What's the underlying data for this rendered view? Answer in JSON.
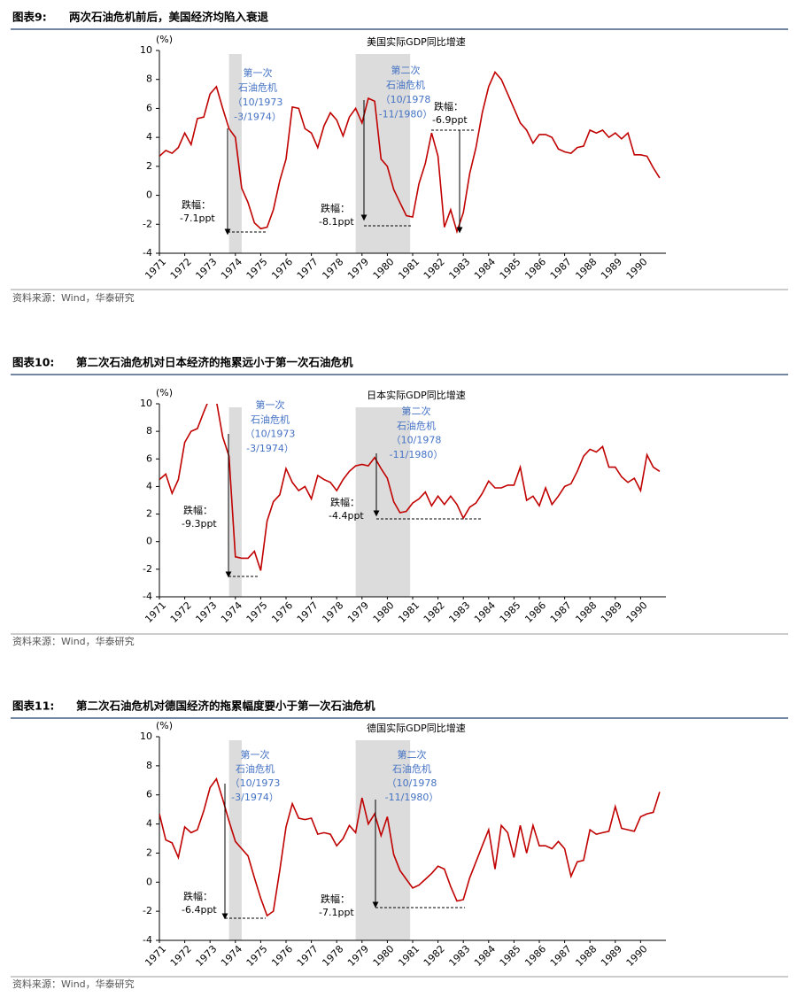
{
  "figures": [
    {
      "label": "图表9:",
      "title": "两次石油危机前后，美国经济均陷入衰退",
      "source": "资料来源：Wind，华泰研究"
    },
    {
      "label": "图表10:",
      "title": "第二次石油危机对日本经济的拖累远小于第一次石油危机",
      "source": "资料来源：Wind，华泰研究"
    },
    {
      "label": "图表11:",
      "title": "第二次石油危机对德国经济的拖累幅度要小于第一次石油危机",
      "source": "资料来源：Wind，华泰研究"
    }
  ],
  "chart_data": [
    {
      "type": "line",
      "title": "美国实际GDP同比增速",
      "y_unit": "(%)",
      "xlim": [
        1971,
        1991
      ],
      "xticks": [
        1971,
        1972,
        1973,
        1974,
        1975,
        1976,
        1977,
        1978,
        1979,
        1980,
        1981,
        1982,
        1983,
        1984,
        1985,
        1986,
        1987,
        1988,
        1989,
        1990
      ],
      "ylim": [
        -4,
        10
      ],
      "yticks": [
        -4,
        -2,
        0,
        2,
        4,
        6,
        8,
        10
      ],
      "shaded_periods": [
        [
          1973.75,
          1974.25
        ],
        [
          1978.75,
          1980.9
        ]
      ],
      "annotations": [
        {
          "lines": [
            "第一次",
            "石油危机",
            "（10/1973",
            "-3/1974）"
          ]
        },
        {
          "lines": [
            "第二次",
            "石油危机",
            "（10/1978",
            "-11/1980）"
          ]
        }
      ],
      "drops": [
        {
          "label": "跌幅：",
          "text": "-7.1ppt"
        },
        {
          "label": "跌幅：",
          "text": "-8.1ppt"
        },
        {
          "label": "跌幅：",
          "text": "-6.9ppt"
        }
      ],
      "x": [
        1971,
        1971.25,
        1971.5,
        1971.75,
        1972,
        1972.25,
        1972.5,
        1972.75,
        1973,
        1973.25,
        1973.5,
        1973.75,
        1974,
        1974.25,
        1974.5,
        1974.75,
        1975,
        1975.25,
        1975.5,
        1975.75,
        1976,
        1976.25,
        1976.5,
        1976.75,
        1977,
        1977.25,
        1977.5,
        1977.75,
        1978,
        1978.25,
        1978.5,
        1978.75,
        1979,
        1979.25,
        1979.5,
        1979.75,
        1980,
        1980.25,
        1980.5,
        1980.75,
        1981,
        1981.25,
        1981.5,
        1981.75,
        1982,
        1982.25,
        1982.5,
        1982.75,
        1983,
        1983.25,
        1983.5,
        1983.75,
        1984,
        1984.25,
        1984.5,
        1984.75,
        1985,
        1985.25,
        1985.5,
        1985.75,
        1986,
        1986.25,
        1986.5,
        1986.75,
        1987,
        1987.25,
        1987.5,
        1987.75,
        1988,
        1988.25,
        1988.5,
        1988.75,
        1989,
        1989.25,
        1989.5,
        1989.75,
        1990,
        1990.25,
        1990.5,
        1990.75
      ],
      "series": [
        {
          "name": "美国实际GDP同比增速",
          "color": "#c00000",
          "values": [
            2.7,
            3.1,
            2.9,
            3.3,
            4.3,
            3.5,
            5.3,
            5.4,
            7.0,
            7.5,
            6.0,
            4.6,
            4.0,
            0.5,
            -0.5,
            -1.9,
            -2.3,
            -2.2,
            -1.0,
            1.0,
            2.5,
            6.1,
            6.0,
            4.6,
            4.3,
            3.3,
            4.8,
            5.7,
            5.2,
            4.1,
            5.4,
            6.0,
            5.0,
            6.7,
            6.5,
            2.5,
            2.0,
            0.4,
            -0.5,
            -1.4,
            -1.5,
            0.8,
            2.2,
            4.3,
            2.7,
            -2.2,
            -1.0,
            -2.5,
            -1.2,
            1.5,
            3.3,
            5.7,
            7.5,
            8.5,
            8.0,
            7.0,
            6.0,
            5.0,
            4.5,
            3.6,
            4.2,
            4.2,
            4.0,
            3.2,
            3.0,
            2.9,
            3.3,
            3.4,
            4.5,
            4.3,
            4.5,
            4.0,
            4.3,
            3.9,
            4.3,
            2.8,
            2.8,
            2.7,
            1.9,
            1.2
          ]
        }
      ]
    },
    {
      "type": "line",
      "title": "日本实际GDP同比增速",
      "y_unit": "(%)",
      "xlim": [
        1971,
        1991
      ],
      "xticks": [
        1971,
        1972,
        1973,
        1974,
        1975,
        1976,
        1977,
        1978,
        1979,
        1980,
        1981,
        1982,
        1983,
        1984,
        1985,
        1986,
        1987,
        1988,
        1989,
        1990
      ],
      "ylim": [
        -4,
        10
      ],
      "yticks": [
        -4,
        -2,
        0,
        2,
        4,
        6,
        8,
        10
      ],
      "shaded_periods": [
        [
          1973.75,
          1974.25
        ],
        [
          1978.75,
          1980.9
        ]
      ],
      "annotations": [
        {
          "lines": [
            "第一次",
            "石油危机",
            "（10/1973",
            "-3/1974）"
          ]
        },
        {
          "lines": [
            "第二次",
            "石油危机",
            "（10/1978",
            "-11/1980）"
          ]
        }
      ],
      "drops": [
        {
          "label": "跌幅：",
          "text": "-9.3ppt"
        },
        {
          "label": "跌幅：",
          "text": "-4.4ppt"
        }
      ],
      "x": [
        1971,
        1971.25,
        1971.5,
        1971.75,
        1972,
        1972.25,
        1972.5,
        1972.75,
        1973,
        1973.25,
        1973.5,
        1973.75,
        1974,
        1974.25,
        1974.5,
        1974.75,
        1975,
        1975.25,
        1975.5,
        1975.75,
        1976,
        1976.25,
        1976.5,
        1976.75,
        1977,
        1977.25,
        1977.5,
        1977.75,
        1978,
        1978.25,
        1978.5,
        1978.75,
        1979,
        1979.25,
        1979.5,
        1979.75,
        1980,
        1980.25,
        1980.5,
        1980.75,
        1981,
        1981.25,
        1981.5,
        1981.75,
        1982,
        1982.25,
        1982.5,
        1982.75,
        1983,
        1983.25,
        1983.5,
        1983.75,
        1984,
        1984.25,
        1984.5,
        1984.75,
        1985,
        1985.25,
        1985.5,
        1985.75,
        1986,
        1986.25,
        1986.5,
        1986.75,
        1987,
        1987.25,
        1987.5,
        1987.75,
        1988,
        1988.25,
        1988.5,
        1988.75,
        1989,
        1989.25,
        1989.5,
        1989.75,
        1990,
        1990.25,
        1990.5,
        1990.75
      ],
      "series": [
        {
          "name": "日本实际GDP同比增速",
          "color": "#c00000",
          "values": [
            4.5,
            4.9,
            3.5,
            4.5,
            7.2,
            8.0,
            8.2,
            9.4,
            10.5,
            10.2,
            7.6,
            6.2,
            -1.1,
            -1.2,
            -1.2,
            -0.7,
            -2.1,
            1.5,
            2.9,
            3.4,
            5.3,
            4.3,
            3.7,
            4.0,
            3.1,
            4.8,
            4.5,
            4.3,
            3.7,
            4.5,
            5.1,
            5.5,
            5.6,
            5.5,
            6.1,
            5.3,
            4.6,
            2.9,
            2.1,
            2.2,
            2.8,
            3.1,
            3.6,
            2.6,
            3.3,
            2.7,
            3.3,
            2.7,
            1.7,
            2.5,
            2.8,
            3.5,
            4.4,
            3.9,
            3.9,
            4.1,
            4.1,
            5.4,
            3.0,
            3.3,
            2.6,
            3.9,
            2.7,
            3.3,
            4.0,
            4.2,
            5.1,
            6.2,
            6.7,
            6.5,
            6.9,
            5.4,
            5.4,
            4.7,
            4.3,
            4.6,
            3.7,
            6.3,
            5.4,
            5.1
          ]
        }
      ]
    },
    {
      "type": "line",
      "title": "德国实际GDP同比增速",
      "y_unit": "(%)",
      "xlim": [
        1971,
        1991
      ],
      "xticks": [
        1971,
        1972,
        1973,
        1974,
        1975,
        1976,
        1977,
        1978,
        1979,
        1980,
        1981,
        1982,
        1983,
        1984,
        1985,
        1986,
        1987,
        1988,
        1989,
        1990
      ],
      "ylim": [
        -4,
        10
      ],
      "yticks": [
        -4,
        -2,
        0,
        2,
        4,
        6,
        8,
        10
      ],
      "shaded_periods": [
        [
          1973.75,
          1974.25
        ],
        [
          1978.75,
          1980.9
        ]
      ],
      "annotations": [
        {
          "lines": [
            "第一次",
            "石油危机",
            "（10/1973",
            "-3/1974）"
          ]
        },
        {
          "lines": [
            "第二次",
            "石油危机",
            "（10/1978",
            "-11/1980）"
          ]
        }
      ],
      "drops": [
        {
          "label": "跌幅：",
          "text": "-6.4ppt"
        },
        {
          "label": "跌幅：",
          "text": "-7.1ppt"
        }
      ],
      "x": [
        1971,
        1971.25,
        1971.5,
        1971.75,
        1972,
        1972.25,
        1972.5,
        1972.75,
        1973,
        1973.25,
        1973.5,
        1973.75,
        1974,
        1974.25,
        1974.5,
        1974.75,
        1975,
        1975.25,
        1975.5,
        1975.75,
        1976,
        1976.25,
        1976.5,
        1976.75,
        1977,
        1977.25,
        1977.5,
        1977.75,
        1978,
        1978.25,
        1978.5,
        1978.75,
        1979,
        1979.25,
        1979.5,
        1979.75,
        1980,
        1980.25,
        1980.5,
        1980.75,
        1981,
        1981.25,
        1981.5,
        1981.75,
        1982,
        1982.25,
        1982.5,
        1982.75,
        1983,
        1983.25,
        1983.5,
        1983.75,
        1984,
        1984.25,
        1984.5,
        1984.75,
        1985,
        1985.25,
        1985.5,
        1985.75,
        1986,
        1986.25,
        1986.5,
        1986.75,
        1987,
        1987.25,
        1987.5,
        1987.75,
        1988,
        1988.25,
        1988.5,
        1988.75,
        1989,
        1989.25,
        1989.5,
        1989.75,
        1990,
        1990.25,
        1990.5,
        1990.75
      ],
      "series": [
        {
          "name": "德国实际GDP同比增速",
          "color": "#c00000",
          "values": [
            4.7,
            2.9,
            2.7,
            1.7,
            3.8,
            3.4,
            3.6,
            4.9,
            6.5,
            7.1,
            5.7,
            4.2,
            2.8,
            2.3,
            1.8,
            0.3,
            -1.1,
            -2.3,
            -2.0,
            0.8,
            3.8,
            5.4,
            4.4,
            4.3,
            4.4,
            3.3,
            3.4,
            3.3,
            2.5,
            3.0,
            3.9,
            3.4,
            5.8,
            4.0,
            4.7,
            3.2,
            4.5,
            1.9,
            0.8,
            0.2,
            -0.4,
            -0.2,
            0.2,
            0.6,
            1.1,
            0.9,
            -0.3,
            -1.3,
            -1.2,
            0.3,
            1.4,
            2.5,
            3.6,
            0.9,
            3.9,
            3.4,
            1.7,
            3.9,
            2.0,
            3.9,
            2.5,
            2.5,
            2.3,
            2.8,
            2.3,
            0.4,
            1.4,
            1.5,
            3.6,
            3.3,
            3.4,
            3.5,
            5.2,
            3.7,
            3.6,
            3.5,
            4.5,
            4.7,
            4.8,
            6.2
          ]
        }
      ]
    }
  ]
}
